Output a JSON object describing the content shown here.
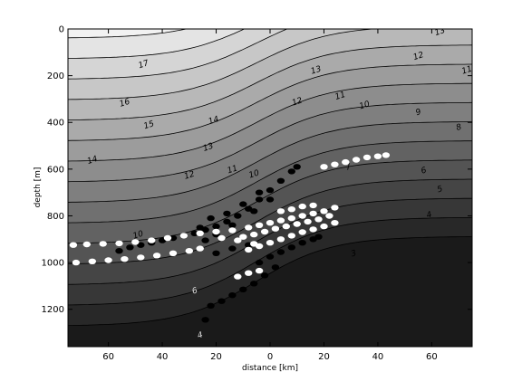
{
  "chart_data": {
    "type": "contour",
    "xlabel": "distance [km]",
    "ylabel": "depth [m]",
    "x_ticks": [
      60,
      40,
      20,
      0,
      20,
      40,
      60
    ],
    "x_tick_positions_km": [
      -60,
      -40,
      -20,
      0,
      20,
      40,
      60
    ],
    "y_ticks": [
      0,
      200,
      400,
      600,
      800,
      1000,
      1200
    ],
    "xlim": [
      -75,
      75
    ],
    "ylim": [
      1360,
      0
    ],
    "y_inverted": true,
    "grid": false,
    "legend": "none",
    "colors": {
      "shallow": "#f2f2f2",
      "deep": "#1a1a1a",
      "lines": "#000000"
    },
    "contour_levels": [
      17,
      16,
      15,
      14,
      13,
      12,
      11,
      10,
      9,
      8,
      7,
      6,
      5,
      4,
      3
    ],
    "contour_labels": [
      {
        "text": "17",
        "x": -47,
        "y": 150,
        "fill": "#000"
      },
      {
        "text": "16",
        "x": -54,
        "y": 315,
        "fill": "#000"
      },
      {
        "text": "15",
        "x": -45,
        "y": 410,
        "fill": "#000"
      },
      {
        "text": "14",
        "x": -66,
        "y": 560,
        "fill": "#000"
      },
      {
        "text": "14",
        "x": -21,
        "y": 390,
        "fill": "#000"
      },
      {
        "text": "13",
        "x": -23,
        "y": 505,
        "fill": "#000"
      },
      {
        "text": "13",
        "x": 17,
        "y": 175,
        "fill": "#000"
      },
      {
        "text": "13",
        "x": 63,
        "y": 10,
        "fill": "#000"
      },
      {
        "text": "12",
        "x": -30,
        "y": 625,
        "fill": "#000"
      },
      {
        "text": "12",
        "x": 10,
        "y": 310,
        "fill": "#000"
      },
      {
        "text": "12",
        "x": 55,
        "y": 115,
        "fill": "#000"
      },
      {
        "text": "11",
        "x": -14,
        "y": 600,
        "fill": "#000"
      },
      {
        "text": "11",
        "x": 26,
        "y": 285,
        "fill": "#000"
      },
      {
        "text": "11",
        "x": 73,
        "y": 175,
        "fill": "#000"
      },
      {
        "text": "10",
        "x": -6,
        "y": 620,
        "fill": "#000"
      },
      {
        "text": "10",
        "x": 35,
        "y": 325,
        "fill": "#000"
      },
      {
        "text": "10",
        "x": -49,
        "y": 880,
        "fill": "#000"
      },
      {
        "text": "9",
        "x": 55,
        "y": 355,
        "fill": "#000"
      },
      {
        "text": "8",
        "x": 70,
        "y": 420,
        "fill": "#000"
      },
      {
        "text": "7",
        "x": 29,
        "y": 590,
        "fill": "#000"
      },
      {
        "text": "6",
        "x": 57,
        "y": 605,
        "fill": "#000"
      },
      {
        "text": "5",
        "x": 63,
        "y": 685,
        "fill": "#000"
      },
      {
        "text": "4",
        "x": 59,
        "y": 795,
        "fill": "#000"
      },
      {
        "text": "3",
        "x": 31,
        "y": 960,
        "fill": "#000"
      },
      {
        "text": "6",
        "x": -28,
        "y": 1120,
        "fill": "#ddd"
      },
      {
        "text": "4",
        "x": -26,
        "y": 1310,
        "fill": "#ddd"
      }
    ],
    "series": [
      {
        "color": "#000000",
        "points_km_m": [
          [
            -56,
            950
          ],
          [
            -52,
            935
          ],
          [
            -48,
            925
          ],
          [
            -44,
            915
          ],
          [
            -40,
            905
          ],
          [
            -36,
            895
          ],
          [
            -32,
            885
          ],
          [
            -28,
            875
          ],
          [
            -24,
            860
          ],
          [
            -20,
            845
          ],
          [
            -16,
            825
          ],
          [
            -12,
            800
          ],
          [
            -8,
            770
          ],
          [
            -4,
            730
          ],
          [
            0,
            690
          ],
          [
            4,
            650
          ],
          [
            8,
            610
          ],
          [
            10,
            590
          ],
          [
            -24,
            905
          ],
          [
            -20,
            880
          ],
          [
            -14,
            840
          ],
          [
            -6,
            780
          ],
          [
            0,
            730
          ],
          [
            -26,
            850
          ],
          [
            -22,
            810
          ],
          [
            -16,
            790
          ],
          [
            -10,
            750
          ],
          [
            -4,
            700
          ],
          [
            -20,
            960
          ],
          [
            -14,
            940
          ],
          [
            -8,
            925
          ],
          [
            -4,
            1000
          ],
          [
            0,
            975
          ],
          [
            4,
            955
          ],
          [
            8,
            935
          ],
          [
            12,
            915
          ],
          [
            16,
            900
          ],
          [
            18,
            890
          ],
          [
            -22,
            1185
          ],
          [
            -18,
            1165
          ],
          [
            -14,
            1140
          ],
          [
            -10,
            1115
          ],
          [
            -6,
            1090
          ],
          [
            -2,
            1055
          ],
          [
            2,
            1020
          ],
          [
            -24,
            1245
          ]
        ]
      },
      {
        "color": "#ffffff",
        "points_km_m": [
          [
            -72,
            1000
          ],
          [
            -66,
            995
          ],
          [
            -60,
            990
          ],
          [
            -54,
            985
          ],
          [
            -48,
            978
          ],
          [
            -42,
            970
          ],
          [
            -36,
            960
          ],
          [
            -30,
            950
          ],
          [
            -26,
            940
          ],
          [
            -73,
            925
          ],
          [
            -68,
            922
          ],
          [
            -62,
            920
          ],
          [
            -56,
            918
          ],
          [
            -50,
            912
          ],
          [
            -44,
            905
          ],
          [
            -38,
            895
          ],
          [
            -32,
            885
          ],
          [
            -26,
            875
          ],
          [
            -20,
            868
          ],
          [
            -14,
            862
          ],
          [
            -8,
            850
          ],
          [
            -4,
            840
          ],
          [
            0,
            830
          ],
          [
            4,
            820
          ],
          [
            8,
            810
          ],
          [
            12,
            800
          ],
          [
            16,
            790
          ],
          [
            20,
            780
          ],
          [
            24,
            765
          ],
          [
            -10,
            890
          ],
          [
            -6,
            880
          ],
          [
            -2,
            868
          ],
          [
            2,
            855
          ],
          [
            6,
            845
          ],
          [
            10,
            835
          ],
          [
            14,
            825
          ],
          [
            18,
            815
          ],
          [
            22,
            800
          ],
          [
            -8,
            945
          ],
          [
            -4,
            930
          ],
          [
            0,
            915
          ],
          [
            4,
            900
          ],
          [
            8,
            885
          ],
          [
            12,
            870
          ],
          [
            16,
            858
          ],
          [
            20,
            845
          ],
          [
            24,
            830
          ],
          [
            20,
            590
          ],
          [
            24,
            580
          ],
          [
            28,
            570
          ],
          [
            32,
            560
          ],
          [
            36,
            550
          ],
          [
            40,
            545
          ],
          [
            43,
            540
          ],
          [
            -12,
            1060
          ],
          [
            -8,
            1045
          ],
          [
            -4,
            1035
          ],
          [
            -6,
            920
          ],
          [
            -12,
            905
          ],
          [
            -18,
            895
          ],
          [
            4,
            780
          ],
          [
            8,
            772
          ],
          [
            12,
            760
          ],
          [
            16,
            755
          ]
        ]
      }
    ]
  }
}
